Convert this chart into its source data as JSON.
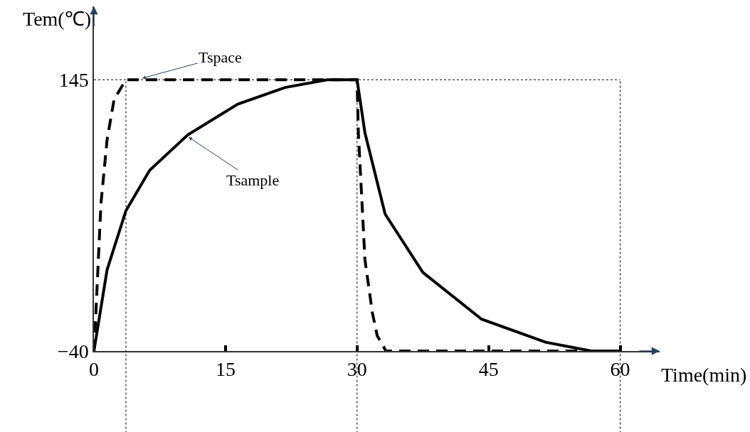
{
  "chart_data": {
    "type": "line",
    "xlabel": "Time(min)",
    "ylabel": "Tem(℃)",
    "xlim": [
      0,
      64.5
    ],
    "ylim": [
      -40,
      195
    ],
    "xticks": [
      0,
      15,
      30,
      45,
      60
    ],
    "yticks": [
      {
        "value": -40,
        "label": "−40"
      },
      145
    ],
    "grid": false,
    "marker": "none",
    "series": [
      {
        "color": "#000000",
        "line_style": "dashed",
        "x": [
          0,
          0.2,
          0.8,
          1.5,
          2.3,
          3.65,
          30,
          30.15,
          30.9,
          31.75,
          32.3,
          33.3,
          60
        ],
        "values": [
          -40,
          -17,
          60.5,
          104,
          131.6,
          145,
          145,
          108.8,
          22.3,
          -14,
          -29.6,
          -40,
          -40
        ]
      },
      {
        "color": "#000000",
        "line_style": "solid",
        "x": [
          0,
          1.5,
          3.65,
          6.35,
          10.7,
          16.4,
          21.8,
          26.6,
          30,
          30.9,
          33.2,
          37.5,
          44.2,
          51.5,
          56.7,
          60
        ],
        "values": [
          -40,
          15.4,
          55.7,
          83.2,
          107.4,
          128.3,
          139.7,
          145,
          145,
          108.8,
          53.4,
          13.6,
          -18.3,
          -34,
          -40,
          -40
        ]
      }
    ],
    "ref_lines": [
      {
        "axis": "x",
        "value": 3.65,
        "line_style": "dotted"
      },
      {
        "axis": "x",
        "value": 30,
        "line_style": "dotted"
      },
      {
        "axis": "x",
        "value": 60,
        "line_style": "dotted"
      },
      {
        "axis": "y",
        "value": 145,
        "line_style": "dotted"
      }
    ],
    "annotations": [
      {
        "text": "Tspace",
        "x": 5.5,
        "y": 146
      },
      {
        "text": "Tsample",
        "x": 10.8,
        "y": 105.8
      }
    ]
  }
}
